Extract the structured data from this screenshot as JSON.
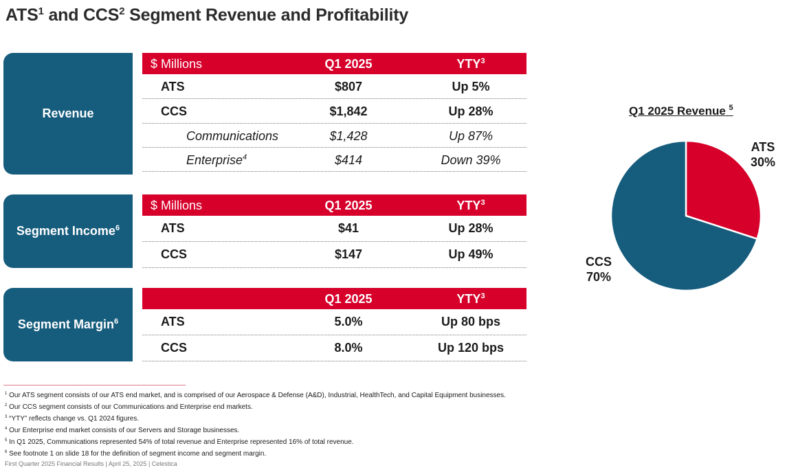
{
  "title": {
    "main_a": "ATS",
    "sup_a": "1",
    "main_b": " and CCS",
    "sup_b": "2",
    "main_c": " Segment Revenue and Profitability"
  },
  "revenue": {
    "label": "Revenue",
    "header": {
      "units": "$ Millions",
      "period": "Q1 2025",
      "change": "YTY",
      "change_sup": "3"
    },
    "rows": [
      {
        "name": "ATS",
        "value": "$807",
        "change": "Up 5%"
      },
      {
        "name": "CCS",
        "value": "$1,842",
        "change": "Up 28%"
      },
      {
        "name": "Communications",
        "value": "$1,428",
        "change": "Up 87%"
      },
      {
        "name": "Enterprise",
        "name_sup": "4",
        "value": "$414",
        "change": "Down 39%"
      }
    ]
  },
  "segment_income": {
    "label": "Segment Income",
    "label_sup": "6",
    "header": {
      "units": "$ Millions",
      "period": "Q1 2025",
      "change": "YTY",
      "change_sup": "3"
    },
    "rows": [
      {
        "name": "ATS",
        "value": "$41",
        "change": "Up 28%"
      },
      {
        "name": "CCS",
        "value": "$147",
        "change": "Up 49%"
      }
    ]
  },
  "segment_margin": {
    "label": "Segment Margin",
    "label_sup": "6",
    "header": {
      "period": "Q1 2025",
      "change": "YTY",
      "change_sup": "3"
    },
    "rows": [
      {
        "name": "ATS",
        "value": "5.0%",
        "change": "Up 80 bps"
      },
      {
        "name": "CCS",
        "value": "8.0%",
        "change": "Up 120 bps"
      }
    ]
  },
  "chart_data": {
    "type": "pie",
    "title": "Q1 2025 Revenue",
    "title_sup": "5",
    "categories": [
      "ATS",
      "CCS"
    ],
    "values": [
      30,
      70
    ],
    "value_labels": [
      "30%",
      "70%"
    ],
    "colors": [
      "#d6002a",
      "#165c7d"
    ],
    "legend": "none"
  },
  "footnotes": [
    {
      "num": "1",
      "text": "Our ATS segment consists of our ATS end market, and is comprised of our Aerospace & Defense (A&D), Industrial, HealthTech, and Capital Equipment businesses."
    },
    {
      "num": "2",
      "text": "Our CCS segment consists of our Communications and Enterprise end markets."
    },
    {
      "num": "3",
      "text": "“YTY” reflects change vs. Q1 2024 figures."
    },
    {
      "num": "4",
      "text": "Our Enterprise end market consists of our Servers and Storage businesses."
    },
    {
      "num": "5",
      "text": "In Q1 2025, Communications represented 54% of total revenue and Enterprise represented 16% of total revenue."
    },
    {
      "num": "6",
      "text": "See footnote 1 on slide 18 for the definition of segment income and segment margin."
    }
  ],
  "footer": "First Quarter 2025 Financial Results | April 25, 2025 | Celestica",
  "colors": {
    "brand_red": "#d6002a",
    "brand_blue": "#165c7d"
  }
}
